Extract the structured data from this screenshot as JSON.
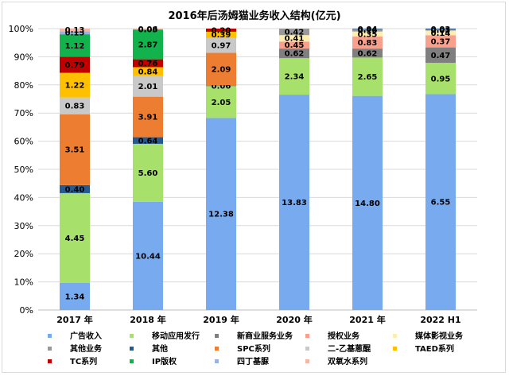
{
  "chart_data": {
    "type": "bar",
    "stacked": true,
    "normalized_percent": true,
    "title": "2016年后汤姆猫业务收入结构(亿元)",
    "categories": [
      "2017 年",
      "2018 年",
      "2019 年",
      "2020 年",
      "2021 年",
      "2022 H1"
    ],
    "y_ticks": [
      "0%",
      "10%",
      "20%",
      "30%",
      "40%",
      "50%",
      "60%",
      "70%",
      "80%",
      "90%",
      "100%"
    ],
    "ylim": [
      0,
      100
    ],
    "grid": true,
    "legend_position": "bottom",
    "series": [
      {
        "name": "广告收入",
        "color": "#77aaee",
        "values": [
          1.34,
          10.44,
          12.38,
          13.83,
          14.8,
          6.55
        ]
      },
      {
        "name": "移动应用发行",
        "color": "#a8e06c",
        "values": [
          4.45,
          5.6,
          2.05,
          2.34,
          2.65,
          0.95
        ]
      },
      {
        "name": "新商业服务业务",
        "color": "#7f7f7f",
        "values": [
          0,
          0,
          0.06,
          0.62,
          0.62,
          0.47
        ]
      },
      {
        "name": "授权业务",
        "color": "#f8a08c",
        "values": [
          0,
          0,
          0,
          0.45,
          0.83,
          0.37
        ]
      },
      {
        "name": "媒体影视业务",
        "color": "#fbeeae",
        "values": [
          0,
          0,
          0,
          0.41,
          0.35,
          0.14
        ]
      },
      {
        "name": "其他业务",
        "color": "#999999",
        "values": [
          0,
          0,
          0,
          0.42,
          0.16,
          0.03
        ]
      },
      {
        "name": "其他",
        "color": "#245a8f",
        "values": [
          0.4,
          0.64,
          0,
          0,
          0.04,
          0.03
        ]
      },
      {
        "name": "SPC系列",
        "color": "#ed7d31",
        "values": [
          3.51,
          3.91,
          2.09,
          0,
          0,
          0
        ]
      },
      {
        "name": "二-乙基蒽醌",
        "color": "#c9c9c9",
        "values": [
          0.83,
          2.01,
          0.97,
          0,
          0,
          0
        ]
      },
      {
        "name": "TAED系列",
        "color": "#ffc000",
        "values": [
          1.22,
          0.84,
          0.39,
          0,
          0,
          0
        ]
      },
      {
        "name": "TC系列",
        "color": "#c00000",
        "values": [
          0.79,
          0.76,
          0.2,
          0,
          0,
          0
        ]
      },
      {
        "name": "IP版权",
        "color": "#12b24c",
        "values": [
          1.12,
          2.87,
          0,
          0,
          0,
          0
        ]
      },
      {
        "name": "四丁基脲",
        "color": "#9bb4df",
        "values": [
          0.15,
          0.03,
          0,
          0,
          0,
          0
        ]
      },
      {
        "name": "双氧水系列",
        "color": "#f4b6a6",
        "values": [
          0.13,
          0.06,
          0,
          0,
          0,
          0
        ]
      }
    ],
    "data_labels": [
      [
        "1.34",
        "4.45",
        "",
        "",
        "",
        "",
        "0.40",
        "3.51",
        "0.83",
        "1.22",
        "0.79",
        "1.12",
        "0.15",
        "0.13"
      ],
      [
        "10.44",
        "5.60",
        "",
        "",
        "",
        "",
        "0.64",
        "3.91",
        "2.01",
        "0.84",
        "0.76",
        "2.87",
        "0.03",
        "0.06"
      ],
      [
        "12.38",
        "2.05",
        "0.06",
        "",
        "",
        "",
        "",
        "2.09",
        "0.97",
        "0.39",
        "0.20",
        "",
        "",
        ""
      ],
      [
        "13.83",
        "2.34",
        "0.62",
        "0.45",
        "0.41",
        "0.42",
        "",
        "",
        "",
        "",
        "",
        "",
        "",
        ""
      ],
      [
        "14.80",
        "2.65",
        "0.62",
        "0.83",
        "0.35",
        "0.16",
        "0.04",
        "",
        "",
        "",
        "",
        "",
        "",
        ""
      ],
      [
        "6.55",
        "0.95",
        "0.47",
        "0.37",
        "0.14",
        "0.03",
        "0.03",
        "",
        "",
        "",
        "",
        "",
        "",
        ""
      ]
    ]
  }
}
